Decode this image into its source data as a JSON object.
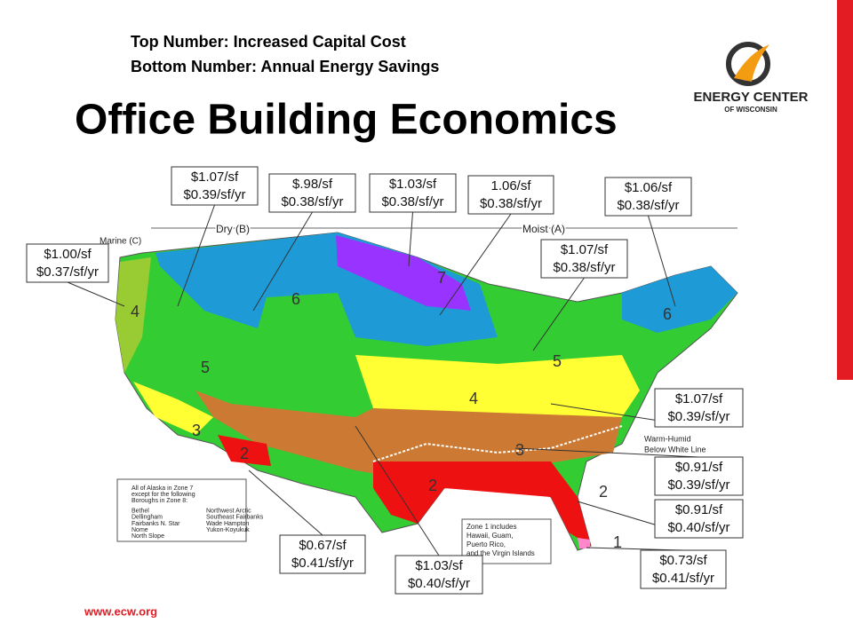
{
  "header": {
    "line1": "Top Number: Increased Capital Cost",
    "line2": "Bottom Number: Annual Energy Savings"
  },
  "title": "Office Building Economics",
  "logo": {
    "name": "ENERGY CENTER",
    "sub": "OF WISCONSIN"
  },
  "map_labels": {
    "marine": "Marine (C)",
    "dry": "Dry (B)",
    "moist": "Moist (A)",
    "warm_humid_1": "Warm-Humid",
    "warm_humid_2": "Below White Line",
    "zones": [
      "1",
      "2",
      "2",
      "2",
      "3",
      "3",
      "4",
      "4",
      "5",
      "5",
      "6",
      "6",
      "7"
    ]
  },
  "alaska_note": [
    "All of Alaska in Zone 7",
    "except for the following",
    "Boroughs in Zone 8:",
    "Bethel",
    "Dellingham",
    "Fairbanks N. Star",
    "Nome",
    "North Slope",
    "Northwest Arctic",
    "Southeast Fairbanks",
    "Wade Hampton",
    "Yukon-Koyukuk"
  ],
  "zone1_note": [
    "Zone 1 includes",
    "Hawaii, Guam,",
    "Puerto Rico,",
    "and the Virgin Islands"
  ],
  "callouts": [
    {
      "top": "$1.00/sf",
      "bottom": "$0.37/sf/yr"
    },
    {
      "top": "$1.07/sf",
      "bottom": "$0.39/sf/yr"
    },
    {
      "top": "$.98/sf",
      "bottom": "$0.38/sf/yr"
    },
    {
      "top": "$1.03/sf",
      "bottom": "$0.38/sf/yr"
    },
    {
      "top": "1.06/sf",
      "bottom": "$0.38/sf/yr"
    },
    {
      "top": "$1.06/sf",
      "bottom": "$0.38/sf/yr"
    },
    {
      "top": "$1.07/sf",
      "bottom": "$0.38/sf/yr"
    },
    {
      "top": "$1.07/sf",
      "bottom": "$0.39/sf/yr"
    },
    {
      "top": "$0.91/sf",
      "bottom": "$0.39/sf/yr"
    },
    {
      "top": "$0.91/sf",
      "bottom": "$0.40/sf/yr"
    },
    {
      "top": "$0.73/sf",
      "bottom": "$0.41/sf/yr"
    },
    {
      "top": "$0.67/sf",
      "bottom": "$0.41/sf/yr"
    },
    {
      "top": "$1.03/sf",
      "bottom": "$0.40/sf/yr"
    }
  ],
  "footer": "www.ecw.org"
}
